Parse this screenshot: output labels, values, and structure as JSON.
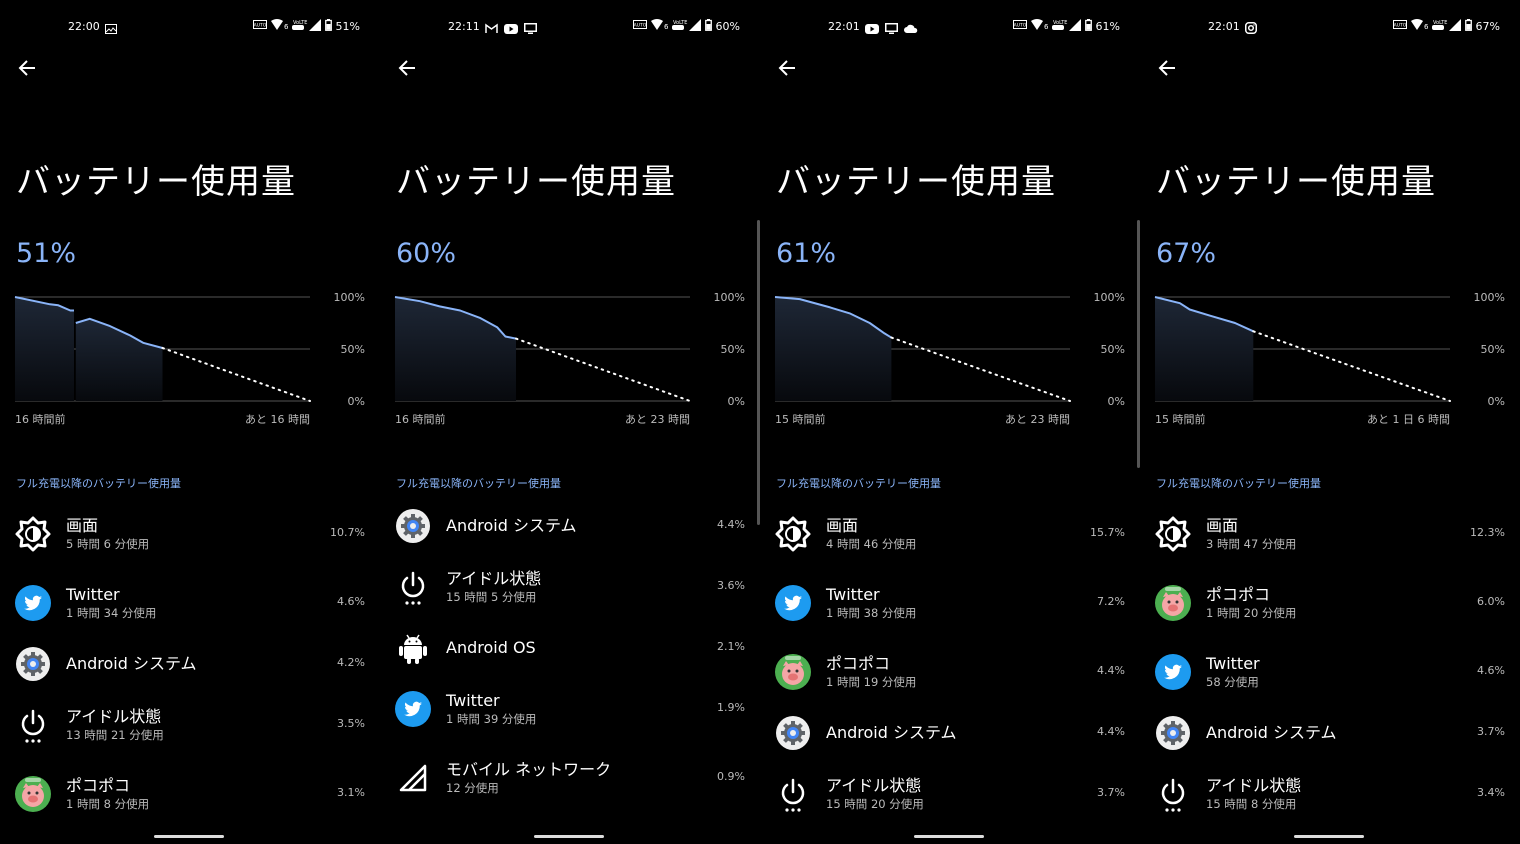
{
  "title": "バッテリー使用量",
  "section_label": "フル充電以降のバッテリー使用量",
  "axis_labels": [
    "100%",
    "50%",
    "0%"
  ],
  "colors": {
    "accent": "#8ab4f8",
    "line": "#8ab4f8",
    "twitter": "#1d9bf0",
    "background": "#000000"
  },
  "panels": [
    {
      "status": {
        "time": "22:00",
        "apps": [
          "gallery-icon"
        ],
        "battery": "51%"
      },
      "percent": "51%",
      "chart_start_label": "16 時間前",
      "chart_end_label": "あと 16 時間",
      "chart": {
        "past_hours": 16,
        "future_hours": 16,
        "current": 51,
        "segments": [
          [
            [
              -16,
              100
            ],
            [
              -12.2,
              93
            ],
            [
              -11.3,
              92
            ],
            [
              -10,
              87
            ],
            [
              -9.6,
              87
            ]
          ],
          [
            [
              -9.4,
              75
            ],
            [
              -7.9,
              79
            ],
            [
              -5.7,
              72
            ],
            [
              -3.5,
              63
            ],
            [
              -2.1,
              56
            ],
            [
              0,
              51
            ]
          ]
        ]
      },
      "scrollbar": false,
      "items": [
        {
          "icon": "screen-brightness-icon",
          "name": "画面",
          "sub": "5 時間 6 分使用",
          "pct": "10.7%"
        },
        {
          "icon": "twitter-icon",
          "name": "Twitter",
          "sub": "1 時間 34 分使用",
          "pct": "4.6%"
        },
        {
          "icon": "android-system-icon",
          "name": "Android システム",
          "sub": "",
          "pct": "4.2%"
        },
        {
          "icon": "idle-power-icon",
          "name": "アイドル状態",
          "sub": "13 時間 21 分使用",
          "pct": "3.5%"
        },
        {
          "icon": "pokopoko-icon",
          "name": "ポコポコ",
          "sub": "1 時間 8 分使用",
          "pct": "3.1%"
        }
      ]
    },
    {
      "status": {
        "time": "22:11",
        "apps": [
          "gmail-icon",
          "youtube-icon",
          "screen-cast-icon"
        ],
        "battery": "60%"
      },
      "percent": "60%",
      "chart_start_label": "16 時間前",
      "chart_end_label": "あと 23 時間",
      "chart": {
        "past_hours": 16,
        "future_hours": 23,
        "current": 60,
        "segments": [
          [
            [
              -16,
              100
            ],
            [
              -12.7,
              96
            ],
            [
              -10.1,
              91
            ],
            [
              -7.4,
              87
            ],
            [
              -4.8,
              80
            ],
            [
              -2.5,
              71
            ],
            [
              -1.4,
              62
            ],
            [
              0,
              60
            ]
          ]
        ]
      },
      "scrollbar": true,
      "items": [
        {
          "icon": "android-system-icon",
          "name": "Android システム",
          "sub": "",
          "pct": "4.4%"
        },
        {
          "icon": "idle-power-icon",
          "name": "アイドル状態",
          "sub": "15 時間 5 分使用",
          "pct": "3.6%"
        },
        {
          "icon": "android-os-icon",
          "name": "Android OS",
          "sub": "",
          "pct": "2.1%"
        },
        {
          "icon": "twitter-icon",
          "name": "Twitter",
          "sub": "1 時間 39 分使用",
          "pct": "1.9%"
        },
        {
          "icon": "mobile-network-icon",
          "name": "モバイル ネットワーク",
          "sub": "12 分使用",
          "pct": "0.9%"
        }
      ]
    },
    {
      "status": {
        "time": "22:01",
        "apps": [
          "youtube-icon",
          "screen-cast-icon",
          "cloud-icon"
        ],
        "battery": "61%"
      },
      "percent": "61%",
      "chart_start_label": "15 時間前",
      "chart_end_label": "あと 23 時間",
      "chart": {
        "past_hours": 15,
        "future_hours": 23,
        "current": 61,
        "segments": [
          [
            [
              -15,
              100
            ],
            [
              -11.8,
              98
            ],
            [
              -7.9,
              90
            ],
            [
              -5.3,
              84
            ],
            [
              -2.8,
              75
            ],
            [
              -0.9,
              65
            ],
            [
              0,
              61
            ]
          ]
        ]
      },
      "scrollbar": true,
      "items": [
        {
          "icon": "screen-brightness-icon",
          "name": "画面",
          "sub": "4 時間 46 分使用",
          "pct": "15.7%"
        },
        {
          "icon": "twitter-icon",
          "name": "Twitter",
          "sub": "1 時間 38 分使用",
          "pct": "7.2%"
        },
        {
          "icon": "pokopoko-icon",
          "name": "ポコポコ",
          "sub": "1 時間 19 分使用",
          "pct": "4.4%"
        },
        {
          "icon": "android-system-icon",
          "name": "Android システム",
          "sub": "",
          "pct": "4.4%"
        },
        {
          "icon": "idle-power-icon",
          "name": "アイドル状態",
          "sub": "15 時間 20 分使用",
          "pct": "3.7%"
        }
      ]
    },
    {
      "status": {
        "time": "22:01",
        "apps": [
          "instagram-icon"
        ],
        "battery": "67%"
      },
      "percent": "67%",
      "chart_start_label": "15 時間前",
      "chart_end_label": "あと 1 日 6 時間",
      "chart": {
        "past_hours": 15,
        "future_hours": 30,
        "current": 67,
        "segments": [
          [
            [
              -15,
              100
            ],
            [
              -11.2,
              94
            ],
            [
              -9.7,
              88
            ],
            [
              -6.6,
              82
            ],
            [
              -2.8,
              75
            ],
            [
              0,
              67
            ]
          ]
        ]
      },
      "scrollbar": false,
      "items": [
        {
          "icon": "screen-brightness-icon",
          "name": "画面",
          "sub": "3 時間 47 分使用",
          "pct": "12.3%"
        },
        {
          "icon": "pokopoko-icon",
          "name": "ポコポコ",
          "sub": "1 時間 20 分使用",
          "pct": "6.0%"
        },
        {
          "icon": "twitter-icon",
          "name": "Twitter",
          "sub": "58 分使用",
          "pct": "4.6%"
        },
        {
          "icon": "android-system-icon",
          "name": "Android システム",
          "sub": "",
          "pct": "3.7%"
        },
        {
          "icon": "idle-power-icon",
          "name": "アイドル状態",
          "sub": "15 時間 8 分使用",
          "pct": "3.4%"
        }
      ]
    }
  ]
}
